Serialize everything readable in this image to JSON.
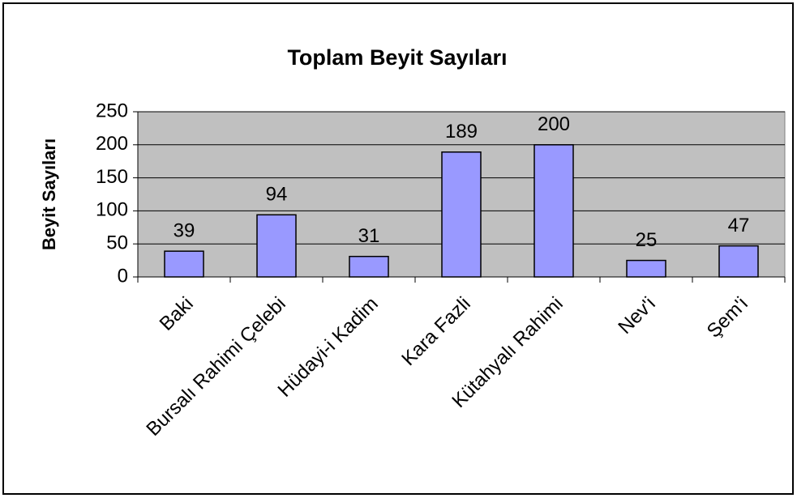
{
  "chart_data": {
    "type": "bar",
    "title": "Toplam Beyit Sayıları",
    "y_label": "Beyit Sayıları",
    "categories": [
      "Baki",
      "Bursalı Rahimi Çelebi",
      "Hüdayi-i Kadim",
      "Kara Fazli",
      "Kütahyalı Rahimi",
      "Nev'i",
      "Şem'i"
    ],
    "values": [
      39,
      94,
      31,
      189,
      200,
      25,
      47
    ],
    "color": "#9999ff",
    "ylim": [
      0,
      250
    ],
    "yticks": [
      0,
      50,
      100,
      150,
      200,
      250
    ],
    "grid": true,
    "data_labels": true
  }
}
